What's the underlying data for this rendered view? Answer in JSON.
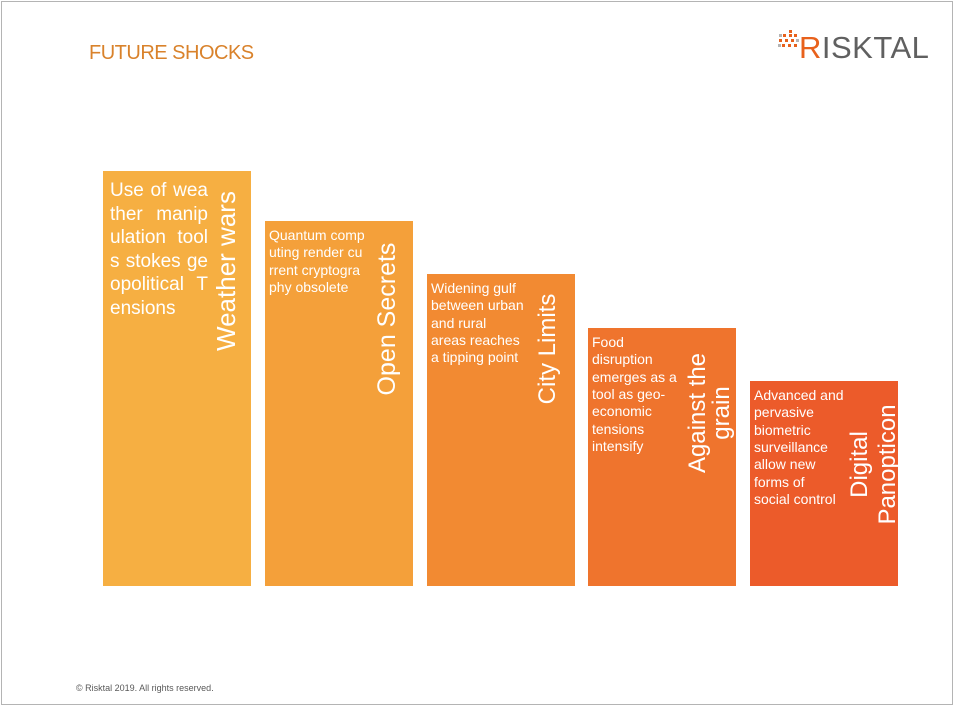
{
  "slide": {
    "title": "FUTURE SHOCKS",
    "footer": "© Risktal 2019. All rights reserved."
  },
  "logo": {
    "text_first": "R",
    "text_rest": "ISKTAL",
    "colors": {
      "accent": "#e8611c",
      "text": "#606060"
    }
  },
  "cards": [
    {
      "title": "Weather wars",
      "description": "Use of weather manipulation tools stokes geopolitical Tensions",
      "color": "#f6af42"
    },
    {
      "title": "Open Secrets",
      "description": "Quantum computing render current cryptography obsolete",
      "color": "#f4a03a"
    },
    {
      "title": "City Limits",
      "description": "Widening gulf between urban and rural areas reaches a tipping point",
      "color": "#f28a32"
    },
    {
      "title": "Against the grain",
      "description": "Food disruption emerges as a tool as geo-economic tensions intensify",
      "color": "#ef742d"
    },
    {
      "title": "Digital Panopticon",
      "description": "Advanced and pervasive biometric surveillance allow new forms of social control",
      "color": "#ec5b2a"
    }
  ]
}
